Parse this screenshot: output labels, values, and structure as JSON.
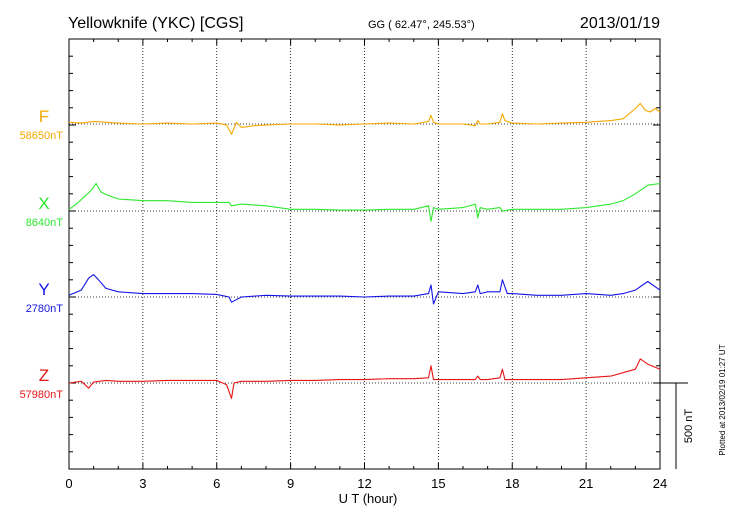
{
  "header": {
    "station": "Yellowknife (YKC)  [CGS]",
    "coords": "GG ( 62.47°, 245.53°)",
    "date": "2013/01/19"
  },
  "footer_note": "Plotted at 2013/02/19 01:27 UT",
  "chart_data": {
    "type": "line",
    "xlabel": "U T (hour)",
    "xlim": [
      0,
      24
    ],
    "xticks": [
      "0",
      "3",
      "6",
      "9",
      "12",
      "15",
      "18",
      "21",
      "24"
    ],
    "unit": "nT",
    "scale_bar": {
      "value": 500,
      "label": "500 nT"
    },
    "series": [
      {
        "name": "F",
        "baseline": "58650nT",
        "color": "#f5a800",
        "x": [
          0,
          0.5,
          1,
          2,
          3,
          4,
          5,
          6,
          6.4,
          6.6,
          6.8,
          7,
          7.5,
          8,
          9,
          10,
          11,
          12,
          13,
          14,
          14.6,
          14.7,
          14.8,
          15,
          16,
          16.5,
          16.6,
          16.7,
          17,
          17.5,
          17.6,
          17.7,
          18,
          19,
          20,
          21,
          22,
          22.5,
          23,
          23.2,
          23.4,
          23.6,
          23.8,
          24
        ],
        "values": [
          10,
          5,
          15,
          5,
          0,
          5,
          0,
          5,
          -5,
          -60,
          10,
          -20,
          -10,
          -5,
          0,
          0,
          -5,
          0,
          5,
          0,
          15,
          50,
          10,
          0,
          0,
          -10,
          20,
          0,
          0,
          10,
          60,
          20,
          5,
          0,
          5,
          10,
          20,
          30,
          90,
          120,
          80,
          70,
          90,
          70
        ]
      },
      {
        "name": "X",
        "baseline": "8640nT",
        "color": "#2ee82e",
        "x": [
          0,
          0.3,
          0.6,
          0.9,
          1.1,
          1.3,
          1.6,
          2,
          3,
          4,
          5,
          6,
          6.5,
          6.6,
          7,
          8,
          9,
          10,
          11,
          12,
          13,
          14,
          14.6,
          14.7,
          14.8,
          15,
          16,
          16.5,
          16.6,
          16.7,
          17,
          17.5,
          17.6,
          18,
          19,
          20,
          21,
          22,
          22.5,
          23,
          23.5,
          24
        ],
        "values": [
          10,
          40,
          80,
          120,
          160,
          110,
          90,
          70,
          60,
          60,
          50,
          50,
          50,
          30,
          40,
          30,
          10,
          10,
          5,
          5,
          10,
          10,
          30,
          -60,
          20,
          10,
          20,
          40,
          -40,
          20,
          10,
          20,
          0,
          10,
          10,
          10,
          20,
          40,
          60,
          100,
          150,
          160
        ]
      },
      {
        "name": "Y",
        "baseline": "2780nT",
        "color": "#1414e6",
        "x": [
          0,
          0.5,
          0.8,
          1,
          1.2,
          1.5,
          2,
          3,
          4,
          5,
          6,
          6.5,
          6.6,
          7,
          8,
          9,
          10,
          11,
          12,
          13,
          14,
          14.6,
          14.7,
          14.8,
          15,
          16,
          16.5,
          16.6,
          16.7,
          17,
          17.5,
          17.6,
          17.8,
          18,
          19,
          20,
          21,
          22,
          22.5,
          23,
          23.5,
          24
        ],
        "values": [
          10,
          40,
          110,
          130,
          100,
          50,
          30,
          20,
          20,
          20,
          15,
          0,
          -30,
          0,
          10,
          5,
          5,
          5,
          0,
          5,
          5,
          20,
          70,
          -40,
          30,
          20,
          30,
          70,
          20,
          30,
          30,
          100,
          20,
          20,
          10,
          10,
          20,
          10,
          20,
          40,
          90,
          40
        ]
      },
      {
        "name": "Z",
        "baseline": "57980nT",
        "color": "#e61414",
        "x": [
          0,
          0.5,
          0.8,
          1,
          1.5,
          2,
          3,
          4,
          5,
          6,
          6.4,
          6.6,
          6.7,
          7,
          8,
          9,
          10,
          11,
          12,
          13,
          14,
          14.6,
          14.7,
          14.8,
          15,
          16,
          16.5,
          16.6,
          16.7,
          17,
          17.5,
          17.6,
          17.7,
          18,
          19,
          20,
          21,
          22,
          22.5,
          23,
          23.2,
          23.5,
          24
        ],
        "values": [
          0,
          10,
          -30,
          5,
          15,
          10,
          10,
          15,
          15,
          15,
          -10,
          -90,
          0,
          10,
          10,
          15,
          15,
          20,
          20,
          25,
          25,
          30,
          100,
          20,
          20,
          20,
          20,
          40,
          20,
          20,
          30,
          80,
          20,
          20,
          20,
          20,
          30,
          40,
          60,
          80,
          140,
          110,
          80
        ]
      }
    ]
  }
}
